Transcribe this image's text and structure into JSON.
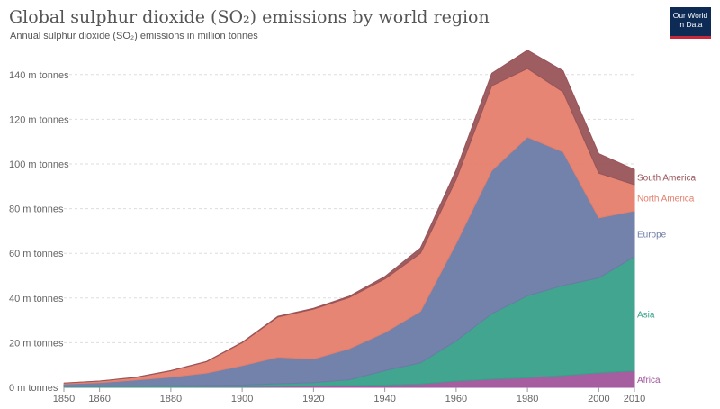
{
  "header": {
    "title": "Global sulphur dioxide (SO₂) emissions by world region",
    "subtitle": "Annual sulphur dioxide (SO₂) emissions in million tonnes"
  },
  "logo": {
    "line1": "Our World",
    "line2": "in Data",
    "bg": "#0d2b54",
    "accent": "#c8283c"
  },
  "chart_data": {
    "type": "area",
    "stacked": true,
    "x": [
      1850,
      1860,
      1870,
      1880,
      1890,
      1900,
      1910,
      1920,
      1930,
      1940,
      1950,
      1960,
      1970,
      1980,
      1990,
      2000,
      2010
    ],
    "series": [
      {
        "name": "Africa",
        "color": "#a2559c",
        "values": [
          0.1,
          0.1,
          0.1,
          0.1,
          0.2,
          0.2,
          0.4,
          0.6,
          0.8,
          1.0,
          1.5,
          2.8,
          3.7,
          4.3,
          5.3,
          6.5,
          7.4
        ]
      },
      {
        "name": "Asia",
        "color": "#38a08a",
        "values": [
          0.3,
          0.4,
          0.5,
          0.6,
          0.7,
          0.8,
          1.2,
          1.5,
          2.6,
          6.5,
          9.5,
          18.0,
          29.3,
          36.7,
          40.3,
          42.5,
          51.1
        ]
      },
      {
        "name": "Europe",
        "color": "#6b7ba6",
        "values": [
          1.1,
          1.6,
          2.7,
          3.9,
          5.5,
          8.7,
          11.9,
          10.6,
          13.9,
          17.0,
          23.0,
          43.6,
          64.0,
          71.0,
          59.8,
          26.9,
          20.5
        ]
      },
      {
        "name": "North America",
        "color": "#e57e6c",
        "values": [
          0.4,
          0.7,
          1.1,
          2.8,
          5.1,
          10.3,
          18.0,
          22.3,
          22.9,
          24.0,
          26.0,
          28.6,
          38.0,
          30.7,
          26.8,
          20.0,
          11.7
        ]
      },
      {
        "name": "South America",
        "color": "#985459",
        "values": [
          0.0,
          0.0,
          0.1,
          0.1,
          0.1,
          0.2,
          0.3,
          0.4,
          0.6,
          1.1,
          2.4,
          4.3,
          5.6,
          8.2,
          9.5,
          8.7,
          6.8
        ]
      }
    ],
    "y_unit": "m tonnes",
    "ylim": [
      0,
      150
    ],
    "y_ticks": [
      0,
      20,
      40,
      60,
      80,
      100,
      120,
      140
    ],
    "y_tick_labels": [
      "0 m tonnes",
      "20 m tonnes",
      "40 m tonnes",
      "60 m tonnes",
      "80 m tonnes",
      "100 m tonnes",
      "120 m tonnes",
      "140 m tonnes"
    ],
    "x_ticks": [
      1850,
      1860,
      1880,
      1900,
      1920,
      1940,
      1960,
      1980,
      2000,
      2010
    ],
    "x_tick_labels": [
      "1850",
      "1860",
      "1880",
      "1900",
      "1920",
      "1940",
      "1960",
      "1980",
      "2000",
      "2010"
    ],
    "grid": "horizontal-dashed",
    "legend": "right"
  }
}
